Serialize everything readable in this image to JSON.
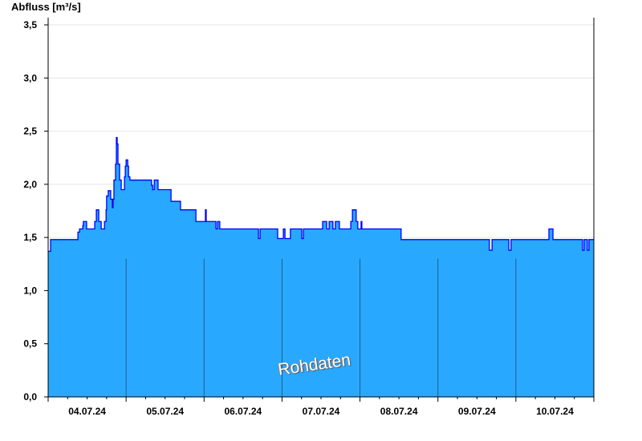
{
  "chart_data": {
    "type": "area",
    "title": "",
    "ylabel": "Abfluss [m³/s]",
    "xlabel": "",
    "ylim": [
      0,
      3.55
    ],
    "yticks": [
      "0,0",
      "0,5",
      "1,0",
      "1,5",
      "2,0",
      "2,5",
      "3,0",
      "3,5"
    ],
    "xlim": [
      "04.07.24 00:00",
      "11.07.24 00:00"
    ],
    "xticks": [
      "04.07.24",
      "05.07.24",
      "06.07.24",
      "07.07.24",
      "08.07.24",
      "09.07.24",
      "10.07.24"
    ],
    "grid": "horizontal",
    "watermark": "Rohdaten",
    "colors": {
      "fill": "#29a8ff",
      "line": "#0000ff",
      "day_separator": "#1f5f8f",
      "grid": "#e6e6e6"
    },
    "step_points": [
      [
        "04.07.24 00:00",
        1.37
      ],
      [
        "04.07.24 00:45",
        1.48
      ],
      [
        "04.07.24 09:10",
        1.55
      ],
      [
        "04.07.24 09:40",
        1.58
      ],
      [
        "04.07.24 10:40",
        1.61
      ],
      [
        "04.07.24 10:50",
        1.65
      ],
      [
        "04.07.24 11:50",
        1.58
      ],
      [
        "04.07.24 14:20",
        1.65
      ],
      [
        "04.07.24 14:50",
        1.76
      ],
      [
        "04.07.24 15:35",
        1.65
      ],
      [
        "04.07.24 16:20",
        1.58
      ],
      [
        "04.07.24 17:20",
        1.65
      ],
      [
        "04.07.24 17:50",
        1.76
      ],
      [
        "04.07.24 18:00",
        1.89
      ],
      [
        "04.07.24 18:30",
        1.94
      ],
      [
        "04.07.24 19:15",
        1.86
      ],
      [
        "04.07.24 19:45",
        1.78
      ],
      [
        "04.07.24 20:00",
        1.86
      ],
      [
        "04.07.24 20:15",
        2.04
      ],
      [
        "04.07.24 20:45",
        2.19
      ],
      [
        "04.07.24 21:00",
        2.44
      ],
      [
        "04.07.24 21:15",
        2.38
      ],
      [
        "04.07.24 21:30",
        2.19
      ],
      [
        "04.07.24 22:00",
        2.04
      ],
      [
        "04.07.24 22:30",
        1.95
      ],
      [
        "04.07.24 23:30",
        2.07
      ],
      [
        "04.07.24 23:45",
        2.17
      ],
      [
        "05.07.24 00:00",
        2.23
      ],
      [
        "05.07.24 00:30",
        2.17
      ],
      [
        "05.07.24 00:45",
        2.07
      ],
      [
        "05.07.24 01:10",
        2.04
      ],
      [
        "05.07.24 07:50",
        1.99
      ],
      [
        "05.07.24 08:10",
        1.95
      ],
      [
        "05.07.24 08:40",
        2.04
      ],
      [
        "05.07.24 09:50",
        1.95
      ],
      [
        "05.07.24 13:50",
        1.84
      ],
      [
        "05.07.24 16:45",
        1.76
      ],
      [
        "05.07.24 21:30",
        1.65
      ],
      [
        "06.07.24 00:25",
        1.76
      ],
      [
        "06.07.24 00:40",
        1.65
      ],
      [
        "06.07.24 03:40",
        1.58
      ],
      [
        "06.07.24 04:10",
        1.65
      ],
      [
        "06.07.24 04:50",
        1.58
      ],
      [
        "06.07.24 16:45",
        1.49
      ],
      [
        "06.07.24 17:15",
        1.58
      ],
      [
        "06.07.24 22:40",
        1.49
      ],
      [
        "07.07.24 00:25",
        1.58
      ],
      [
        "07.07.24 00:55",
        1.49
      ],
      [
        "07.07.24 02:35",
        1.58
      ],
      [
        "07.07.24 06:05",
        1.49
      ],
      [
        "07.07.24 06:35",
        1.58
      ],
      [
        "07.07.24 12:30",
        1.65
      ],
      [
        "07.07.24 13:45",
        1.58
      ],
      [
        "07.07.24 14:30",
        1.65
      ],
      [
        "07.07.24 15:40",
        1.58
      ],
      [
        "07.07.24 16:25",
        1.65
      ],
      [
        "07.07.24 17:40",
        1.58
      ],
      [
        "07.07.24 21:10",
        1.65
      ],
      [
        "07.07.24 21:40",
        1.76
      ],
      [
        "07.07.24 22:50",
        1.65
      ],
      [
        "07.07.24 23:20",
        1.58
      ],
      [
        "08.07.24 00:20",
        1.65
      ],
      [
        "08.07.24 00:35",
        1.58
      ],
      [
        "08.07.24 12:40",
        1.48
      ],
      [
        "09.07.24 15:50",
        1.38
      ],
      [
        "09.07.24 16:40",
        1.48
      ],
      [
        "09.07.24 21:50",
        1.38
      ],
      [
        "09.07.24 22:30",
        1.48
      ],
      [
        "10.07.24 10:10",
        1.58
      ],
      [
        "10.07.24 11:25",
        1.48
      ],
      [
        "10.07.24 20:30",
        1.38
      ],
      [
        "10.07.24 21:00",
        1.48
      ],
      [
        "10.07.24 22:00",
        1.38
      ],
      [
        "10.07.24 22:30",
        1.48
      ],
      [
        "11.07.24 00:00",
        1.48
      ]
    ]
  }
}
